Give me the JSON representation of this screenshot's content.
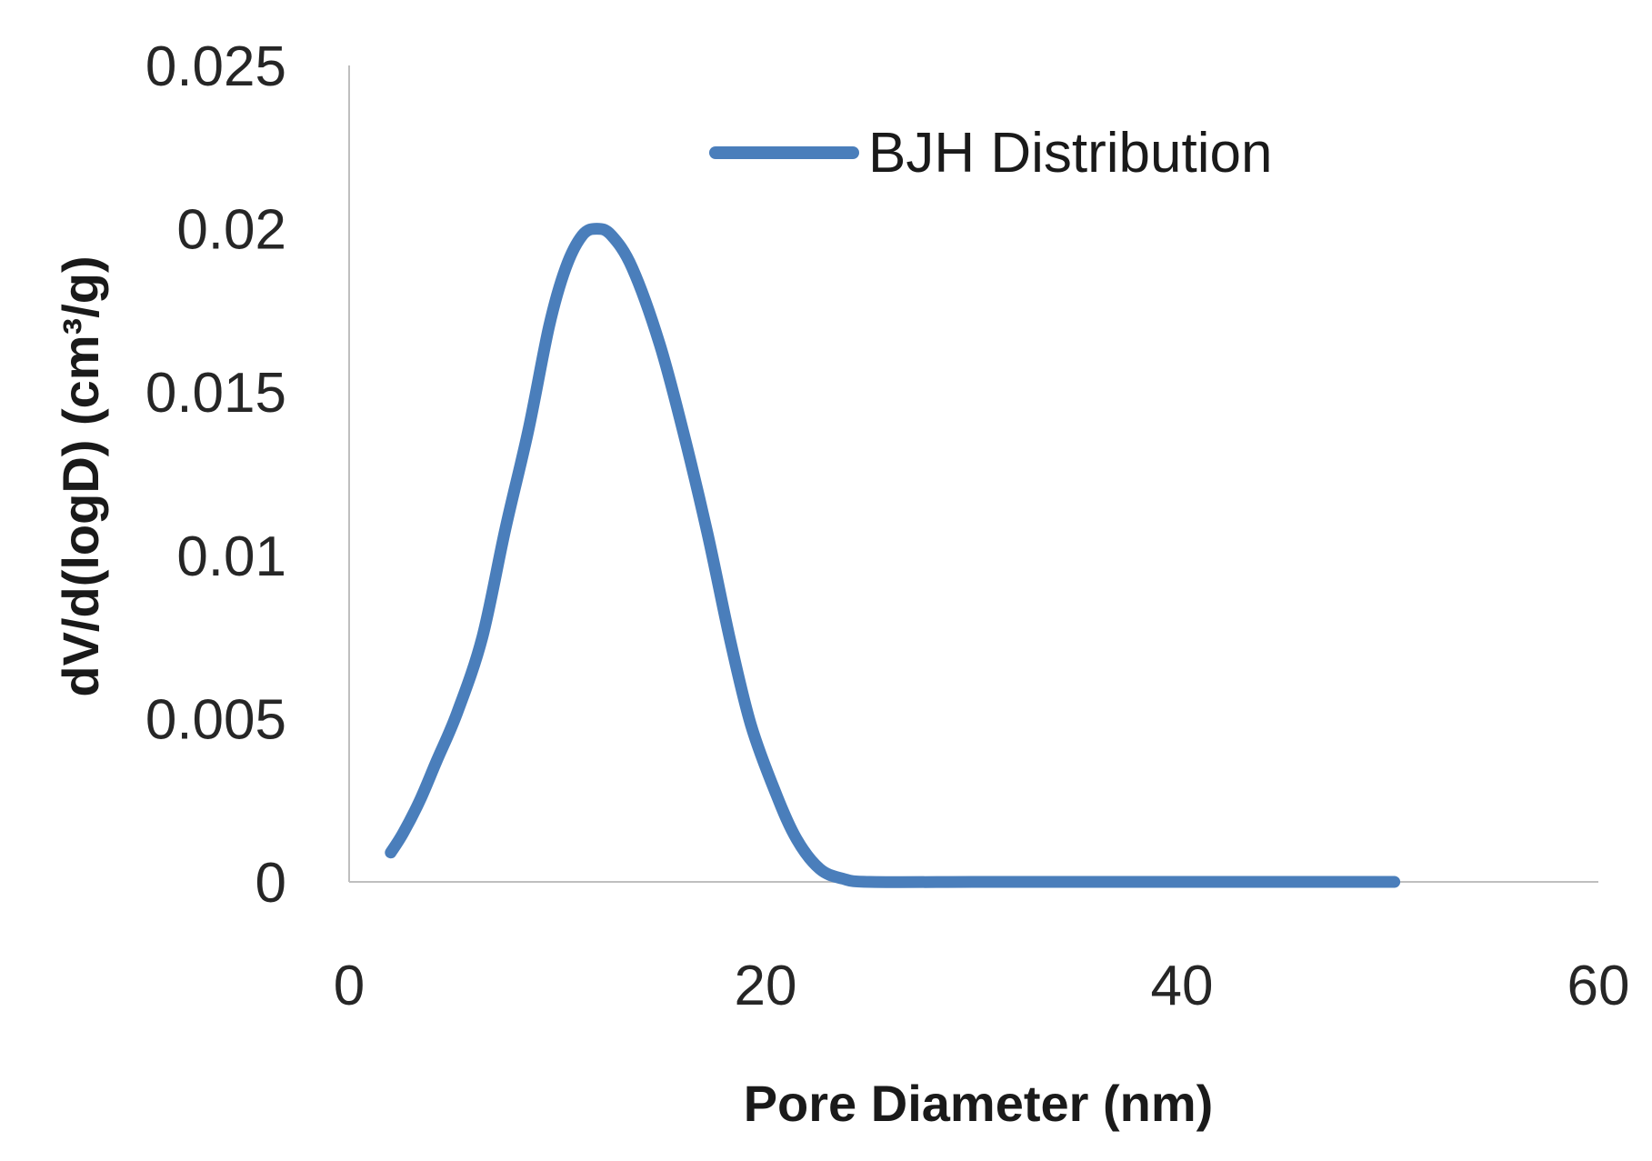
{
  "chart_data": {
    "type": "line",
    "title": "",
    "xlabel": "Pore Diameter (nm)",
    "ylabel": "dV/d(logD) (cm³/g)",
    "xlim": [
      0,
      60
    ],
    "ylim": [
      0,
      0.025
    ],
    "x_ticks": [
      0,
      20,
      40,
      60
    ],
    "x_tick_labels": [
      "0",
      "20",
      "40",
      "60"
    ],
    "y_ticks": [
      0,
      0.005,
      0.01,
      0.015,
      0.02,
      0.025
    ],
    "y_tick_labels": [
      "0",
      "0.005",
      "0.01",
      "0.015",
      "0.02",
      "0.025"
    ],
    "grid": false,
    "legend": {
      "placement": "top-center",
      "entries": [
        "BJH Distribution"
      ]
    },
    "series": [
      {
        "name": "BJH Distribution",
        "color": "#4a7ebb",
        "x": [
          2,
          2.6,
          3.4,
          4.2,
          5.2,
          6.4,
          7.5,
          8.6,
          9.6,
          10.4,
          11.2,
          11.9,
          12.6,
          13.6,
          14.9,
          16.0,
          17.2,
          18.3,
          19.3,
          20.5,
          21.5,
          22.6,
          23.7,
          25,
          30,
          35,
          40,
          45,
          50.2
        ],
        "y": [
          0.0009,
          0.0015,
          0.0025,
          0.0037,
          0.0052,
          0.0075,
          0.0108,
          0.0138,
          0.017,
          0.0188,
          0.0198,
          0.02,
          0.0198,
          0.0188,
          0.0165,
          0.0139,
          0.0107,
          0.0074,
          0.0048,
          0.0027,
          0.0013,
          0.0004,
          0.0001,
          0.0,
          0.0,
          0.0,
          0.0,
          0.0,
          0.0
        ]
      }
    ]
  }
}
